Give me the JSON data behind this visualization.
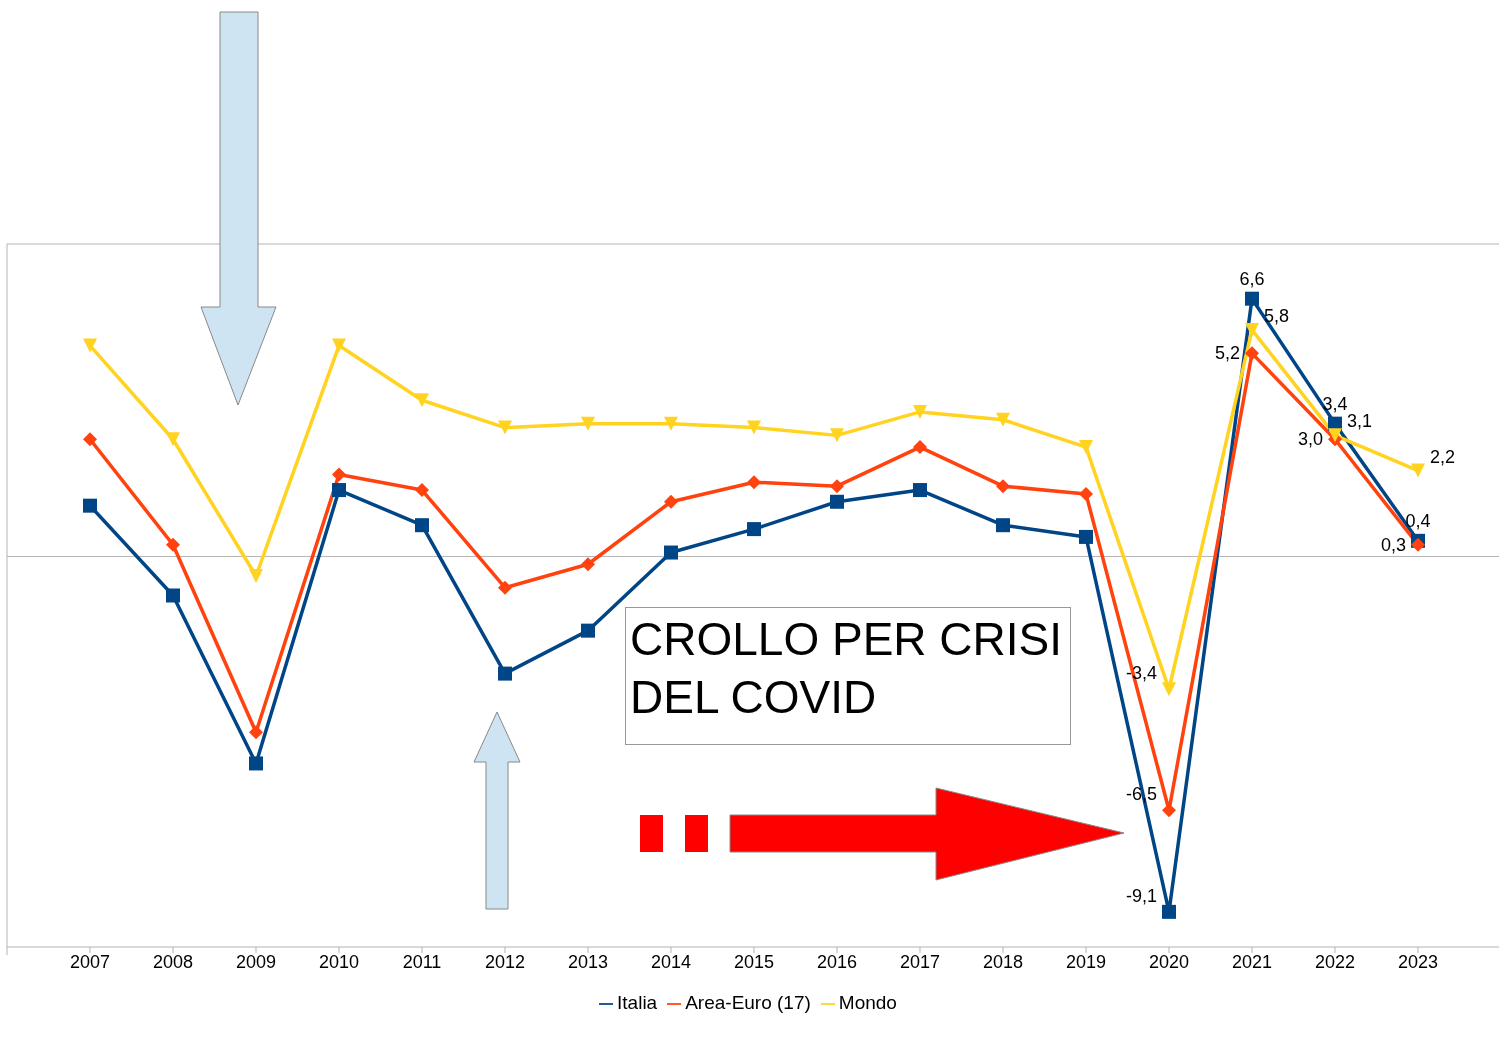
{
  "chart_data": {
    "type": "line",
    "categories": [
      "2007",
      "2008",
      "2009",
      "2010",
      "2011",
      "2012",
      "2013",
      "2014",
      "2015",
      "2016",
      "2017",
      "2018",
      "2019",
      "2020",
      "2021",
      "2022",
      "2023"
    ],
    "series": [
      {
        "name": "Italia",
        "color": "#004586",
        "marker": "square",
        "values": [
          1.3,
          -1.0,
          -5.3,
          1.7,
          0.8,
          -3.0,
          -1.9,
          0.1,
          0.7,
          1.4,
          1.7,
          0.8,
          0.5,
          -9.1,
          6.6,
          3.4,
          0.4
        ],
        "value_labels": [
          null,
          null,
          null,
          null,
          null,
          null,
          null,
          null,
          null,
          null,
          null,
          null,
          null,
          "-9,1",
          "6,6",
          "3,4",
          "0,4"
        ]
      },
      {
        "name": "Area-Euro (17)",
        "color": "#ff420e",
        "marker": "diamond",
        "values": [
          3.0,
          0.3,
          -4.5,
          2.1,
          1.7,
          -0.8,
          -0.2,
          1.4,
          1.9,
          1.8,
          2.8,
          1.8,
          1.6,
          -6.5,
          5.2,
          3.0,
          0.3
        ],
        "value_labels": [
          null,
          null,
          null,
          null,
          null,
          null,
          null,
          null,
          null,
          null,
          null,
          null,
          null,
          "-6,5",
          "5,2",
          "3,0",
          "0,3"
        ]
      },
      {
        "name": "Mondo",
        "color": "#ffd320",
        "marker": "triangle",
        "values": [
          5.4,
          3.0,
          -0.5,
          5.4,
          4.0,
          3.3,
          3.4,
          3.4,
          3.3,
          3.1,
          3.7,
          3.5,
          2.8,
          -3.4,
          5.8,
          3.1,
          2.2
        ],
        "value_labels": [
          null,
          null,
          null,
          null,
          null,
          null,
          null,
          null,
          null,
          null,
          null,
          null,
          null,
          "-3,4",
          "5,8",
          "3,1",
          "2,2"
        ]
      }
    ],
    "ylim": [
      -10,
      8
    ],
    "tick_labels": "x",
    "legend": "bottom",
    "grid": false,
    "ref_lines": [
      {
        "axis": "y",
        "value": 0
      }
    ],
    "annotations": [
      "CROLLO PER CRISI DEL COVID"
    ]
  }
}
